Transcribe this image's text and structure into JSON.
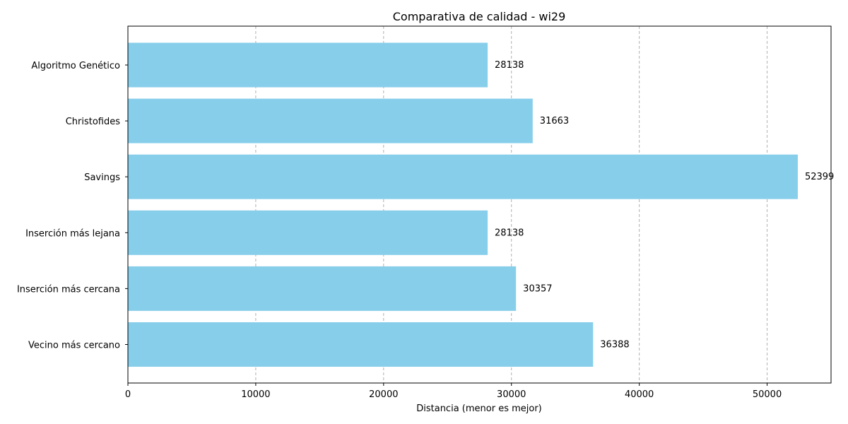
{
  "chart_data": {
    "type": "bar",
    "orientation": "horizontal",
    "title": "Comparativa de calidad - wi29",
    "xlabel": "Distancia (menor es mejor)",
    "ylabel": "",
    "categories": [
      "Vecino más cercano",
      "Inserción más cercana",
      "Inserción más lejana",
      "Savings",
      "Christofides",
      "Algoritmo Genético"
    ],
    "values": [
      36388,
      30357,
      28138,
      52399,
      31663,
      28138
    ],
    "data_labels": [
      "36388",
      "30357",
      "28138",
      "52399",
      "31663",
      "28138"
    ],
    "xlim": [
      0,
      55000
    ],
    "x_ticks": [
      0,
      10000,
      20000,
      30000,
      40000,
      50000
    ],
    "x_tick_labels": [
      "0",
      "10000",
      "20000",
      "30000",
      "40000",
      "50000"
    ],
    "grid": "x-dashed",
    "colors": {
      "bar": "#87ceeb"
    }
  }
}
